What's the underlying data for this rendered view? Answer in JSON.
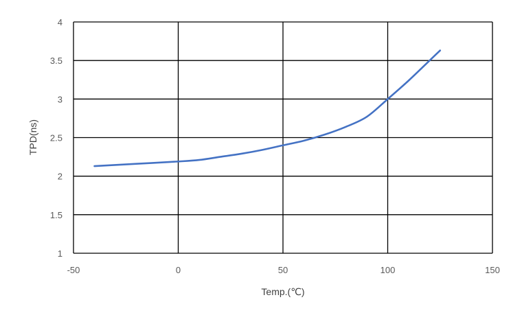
{
  "chart_data": {
    "type": "line",
    "title": "",
    "xlabel": "Temp.(℃)",
    "ylabel": "TPD(ns)",
    "xlim": [
      -50,
      150
    ],
    "ylim": [
      1,
      4
    ],
    "x_ticks": [
      "-50",
      "0",
      "50",
      "100",
      "150"
    ],
    "y_ticks": [
      "1",
      "1.5",
      "2",
      "2.5",
      "3",
      "3.5",
      "4"
    ],
    "x_tick_values": [
      -50,
      0,
      50,
      100,
      150
    ],
    "y_tick_values": [
      1,
      1.5,
      2,
      2.5,
      3,
      3.5,
      4
    ],
    "grid": true,
    "legend": "none",
    "series": [
      {
        "color": "#4472c4",
        "x": [
          -40,
          -20,
          0,
          10,
          20,
          30,
          40,
          50,
          60,
          70,
          80,
          90,
          100,
          110,
          120,
          125
        ],
        "y": [
          2.13,
          2.16,
          2.19,
          2.21,
          2.25,
          2.29,
          2.34,
          2.4,
          2.46,
          2.54,
          2.64,
          2.77,
          3.0,
          3.24,
          3.5,
          3.63
        ]
      }
    ]
  },
  "colors": {
    "background": "#ffffff",
    "grid": "#000000",
    "line": "#4472c4",
    "tick_text": "#595959",
    "axis_title": "#404040"
  }
}
